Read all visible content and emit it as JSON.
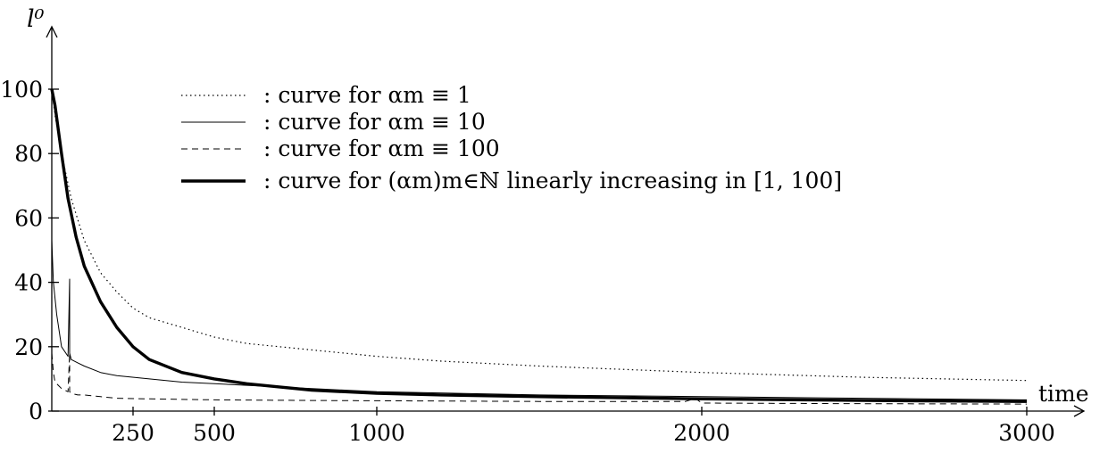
{
  "chart_data": {
    "type": "line",
    "ylabel": "l⁰",
    "xlabel": "time",
    "xlim": [
      0,
      3000
    ],
    "ylim": [
      0,
      100
    ],
    "x_ticks": [
      250,
      500,
      1000,
      2000,
      3000
    ],
    "y_ticks": [
      0,
      20,
      40,
      60,
      80,
      100
    ],
    "grid": false,
    "legend_position": "top-center",
    "series": [
      {
        "name": ": curve for αm ≡ 1",
        "style": "dotted",
        "x": [
          0,
          10,
          30,
          60,
          100,
          150,
          200,
          250,
          300,
          400,
          500,
          600,
          700,
          800,
          1000,
          1200,
          1500,
          2000,
          2500,
          3000
        ],
        "y": [
          100,
          92,
          80,
          66,
          53,
          43,
          37,
          32,
          29,
          26,
          23,
          21,
          20,
          19,
          17,
          15.5,
          14,
          12,
          10.5,
          9.5
        ]
      },
      {
        "name": ": curve for αm ≡ 10",
        "style": "solid",
        "x": [
          0,
          5,
          15,
          30,
          50,
          55,
          55,
          60,
          80,
          100,
          150,
          200,
          300,
          400,
          500,
          600,
          800,
          1000,
          1500,
          2000,
          2500,
          3000
        ],
        "y": [
          53,
          40,
          30,
          20,
          17,
          41,
          18,
          16,
          15,
          14,
          12,
          11,
          10,
          9,
          8.5,
          8,
          7,
          6,
          5,
          4.5,
          4,
          3.5
        ]
      },
      {
        "name": ": curve for αm ≡ 100",
        "style": "dashed",
        "x": [
          0,
          5,
          10,
          20,
          30,
          50,
          55,
          55,
          60,
          80,
          100,
          150,
          200,
          300,
          500,
          800,
          1000,
          1500,
          1950,
          1980,
          2000,
          2500,
          3000
        ],
        "y": [
          18,
          12,
          9,
          8,
          7,
          6,
          18,
          6,
          5.5,
          5,
          5,
          4.5,
          4,
          3.8,
          3.5,
          3.3,
          3.2,
          3,
          3,
          4,
          2.5,
          2.3,
          2.2
        ]
      },
      {
        "name": ": curve for (αm)m∈ℕ linearly increasing in [1, 100]",
        "style": "thick",
        "x": [
          0,
          10,
          30,
          50,
          75,
          100,
          150,
          200,
          250,
          300,
          400,
          500,
          600,
          700,
          800,
          1000,
          1200,
          1500,
          2000,
          2500,
          3000
        ],
        "y": [
          100,
          95,
          80,
          66,
          54,
          45,
          34,
          26,
          20,
          16,
          12,
          10,
          8.5,
          7.5,
          6.5,
          5.5,
          5,
          4.5,
          3.8,
          3.3,
          3
        ]
      }
    ]
  }
}
